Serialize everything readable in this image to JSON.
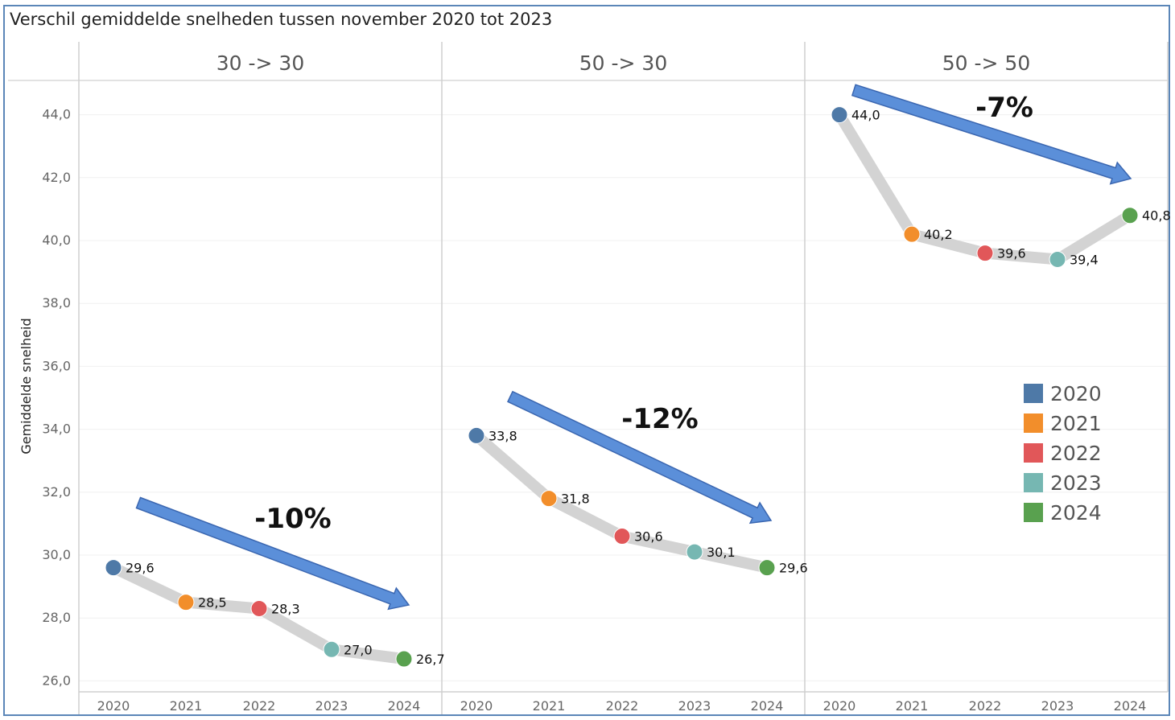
{
  "title": "Verschil gemiddelde snelheden tussen november 2020 tot 2023",
  "colors": {
    "2020": "#4e79a7",
    "2021": "#f28e2b",
    "2022": "#e15759",
    "2023": "#76b7b2",
    "2024": "#59a14f",
    "path": "#d3d3d3",
    "arrow": "#5b8fd9"
  },
  "chart_data": {
    "type": "line",
    "ylabel": "Gemiddelde snelheid",
    "ylim": [
      25.5,
      45.2
    ],
    "yticks": [
      "26,0",
      "28,0",
      "30,0",
      "32,0",
      "34,0",
      "36,0",
      "38,0",
      "40,0",
      "42,0",
      "44,0"
    ],
    "ytick_values": [
      26,
      28,
      30,
      32,
      34,
      36,
      38,
      40,
      42,
      44
    ],
    "categories": [
      "2020",
      "2021",
      "2022",
      "2023",
      "2024"
    ],
    "panels": [
      {
        "name": "30 -> 30",
        "values": [
          29.6,
          28.5,
          28.3,
          27.0,
          26.7
        ],
        "labels": [
          "29,6",
          "28,5",
          "28,3",
          "27,0",
          "26,7"
        ],
        "change": "-10%"
      },
      {
        "name": "50 -> 30",
        "values": [
          33.8,
          31.8,
          30.6,
          30.1,
          29.6
        ],
        "labels": [
          "33,8",
          "31,8",
          "30,6",
          "30,1",
          "29,6"
        ],
        "change": "-12%"
      },
      {
        "name": "50 -> 50",
        "values": [
          44.0,
          40.2,
          39.6,
          39.4,
          40.8
        ],
        "labels": [
          "44,0",
          "40,2",
          "39,6",
          "39,4",
          "40,8"
        ],
        "change": "-7%"
      }
    ],
    "legend": {
      "position": "right",
      "entries": [
        "2020",
        "2021",
        "2022",
        "2023",
        "2024"
      ]
    },
    "grid": true
  }
}
